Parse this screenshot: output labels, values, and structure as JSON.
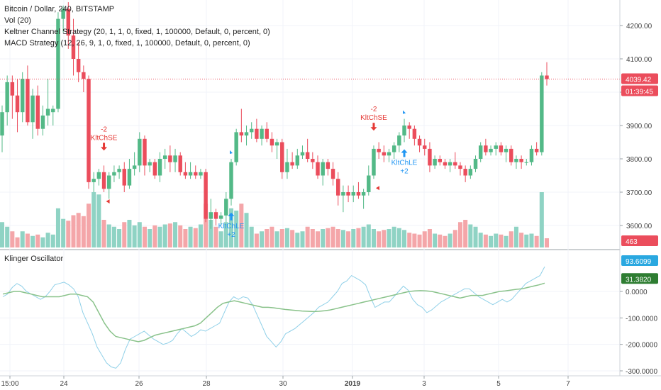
{
  "header": {
    "symbol_line": "Bitcoin / Dollar, 240, BITSTAMP",
    "indicators": [
      "Vol (20)",
      "Keltner Channel Strategy (20, 1, 1, 0, fixed, 1, 100000, Default, 0, percent, 0)",
      "MACD Strategy (12, 26, 9, 1, 0, fixed, 1, 100000, Default, 0, percent, 0)"
    ]
  },
  "oscillator": {
    "title": "Klinger Oscillator"
  },
  "badges": {
    "last_price": "4039.42",
    "countdown": "01:39:45",
    "volume": "463",
    "osc_value_1": "93.6099",
    "osc_value_2": "31.3820"
  },
  "colors": {
    "up": "#53b987",
    "down": "#eb4d5c",
    "vol_up": "#8fd3c4",
    "vol_down": "#f4a6a9",
    "signal_long": "#2196f3",
    "signal_short": "#e53935",
    "klinger_line": "#8fd0e8",
    "klinger_signal": "#89c28a"
  },
  "chart_data": [
    {
      "type": "candlestick",
      "title": "Bitcoin / Dollar, 240, BITSTAMP",
      "ylim": [
        3540,
        4280
      ],
      "y_ticks": [
        "4200.00",
        "4100.00",
        "4000.00",
        "3900.00",
        "3800.00",
        "3700.00",
        "3600.00"
      ],
      "x_ticks": [
        "15:00",
        "24",
        "26",
        "28",
        "30",
        "2019",
        "3",
        "5",
        "7"
      ],
      "candles": [
        [
          3870,
          3960,
          3820,
          3940
        ],
        [
          3940,
          4050,
          3900,
          4030
        ],
        [
          4030,
          4050,
          3920,
          3990
        ],
        [
          3990,
          4040,
          3880,
          3940
        ],
        [
          3940,
          4060,
          3910,
          4040
        ],
        [
          4040,
          4080,
          3900,
          3910
        ],
        [
          3910,
          4010,
          3860,
          3990
        ],
        [
          3990,
          4020,
          3870,
          3890
        ],
        [
          3890,
          3960,
          3870,
          3930
        ],
        [
          3930,
          4040,
          3900,
          3950
        ],
        [
          3940,
          3960,
          3900,
          3950
        ],
        [
          3950,
          4240,
          3940,
          4220
        ],
        [
          4220,
          4260,
          4180,
          4250
        ],
        [
          4250,
          4270,
          4130,
          4170
        ],
        [
          4170,
          4220,
          4050,
          4100
        ],
        [
          4100,
          4150,
          4030,
          4060
        ],
        [
          4060,
          4080,
          4000,
          4040
        ],
        [
          4040,
          4050,
          3710,
          3730
        ],
        [
          3730,
          3760,
          3700,
          3740
        ],
        [
          3740,
          3770,
          3720,
          3760
        ],
        [
          3760,
          3780,
          3700,
          3710
        ],
        [
          3710,
          3760,
          3680,
          3750
        ],
        [
          3750,
          3780,
          3730,
          3760
        ],
        [
          3760,
          3780,
          3740,
          3770
        ],
        [
          3770,
          3790,
          3700,
          3720
        ],
        [
          3720,
          3800,
          3710,
          3770
        ],
        [
          3770,
          3820,
          3750,
          3780
        ],
        [
          3780,
          3880,
          3760,
          3860
        ],
        [
          3860,
          3870,
          3750,
          3780
        ],
        [
          3780,
          3800,
          3760,
          3790
        ],
        [
          3790,
          3800,
          3740,
          3750
        ],
        [
          3750,
          3820,
          3730,
          3800
        ],
        [
          3800,
          3830,
          3770,
          3810
        ],
        [
          3810,
          3840,
          3760,
          3790
        ],
        [
          3790,
          3830,
          3760,
          3810
        ],
        [
          3810,
          3820,
          3750,
          3760
        ],
        [
          3760,
          3790,
          3740,
          3750
        ],
        [
          3750,
          3790,
          3740,
          3760
        ],
        [
          3760,
          3780,
          3740,
          3750
        ],
        [
          3750,
          3770,
          3740,
          3760
        ],
        [
          3760,
          3770,
          3610,
          3620
        ],
        [
          3620,
          3680,
          3590,
          3640
        ],
        [
          3640,
          3650,
          3600,
          3620
        ],
        [
          3620,
          3640,
          3600,
          3630
        ],
        [
          3630,
          3700,
          3610,
          3680
        ],
        [
          3680,
          3800,
          3660,
          3790
        ],
        [
          3790,
          3890,
          3780,
          3880
        ],
        [
          3880,
          3950,
          3850,
          3870
        ],
        [
          3870,
          3900,
          3840,
          3880
        ],
        [
          3880,
          3910,
          3860,
          3890
        ],
        [
          3890,
          3920,
          3850,
          3860
        ],
        [
          3860,
          3900,
          3840,
          3890
        ],
        [
          3890,
          3910,
          3850,
          3860
        ],
        [
          3860,
          3880,
          3820,
          3840
        ],
        [
          3840,
          3860,
          3800,
          3850
        ],
        [
          3850,
          3860,
          3740,
          3760
        ],
        [
          3760,
          3830,
          3740,
          3790
        ],
        [
          3790,
          3820,
          3770,
          3780
        ],
        [
          3780,
          3830,
          3770,
          3810
        ],
        [
          3810,
          3840,
          3800,
          3820
        ],
        [
          3820,
          3860,
          3790,
          3800
        ],
        [
          3800,
          3820,
          3770,
          3790
        ],
        [
          3790,
          3810,
          3740,
          3750
        ],
        [
          3750,
          3800,
          3720,
          3790
        ],
        [
          3790,
          3800,
          3750,
          3770
        ],
        [
          3770,
          3790,
          3720,
          3740
        ],
        [
          3740,
          3760,
          3660,
          3690
        ],
        [
          3690,
          3720,
          3640,
          3700
        ],
        [
          3700,
          3720,
          3670,
          3690
        ],
        [
          3690,
          3720,
          3670,
          3700
        ],
        [
          3700,
          3730,
          3680,
          3690
        ],
        [
          3690,
          3710,
          3650,
          3700
        ],
        [
          3700,
          3780,
          3690,
          3750
        ],
        [
          3750,
          3840,
          3740,
          3830
        ],
        [
          3830,
          3850,
          3800,
          3820
        ],
        [
          3820,
          3840,
          3790,
          3810
        ],
        [
          3810,
          3830,
          3790,
          3820
        ],
        [
          3820,
          3850,
          3800,
          3840
        ],
        [
          3840,
          3880,
          3820,
          3870
        ],
        [
          3870,
          3920,
          3850,
          3900
        ],
        [
          3900,
          3910,
          3860,
          3890
        ],
        [
          3890,
          3900,
          3840,
          3860
        ],
        [
          3860,
          3870,
          3820,
          3840
        ],
        [
          3840,
          3860,
          3810,
          3830
        ],
        [
          3830,
          3850,
          3760,
          3780
        ],
        [
          3780,
          3810,
          3770,
          3800
        ],
        [
          3800,
          3810,
          3780,
          3790
        ],
        [
          3790,
          3800,
          3770,
          3780
        ],
        [
          3780,
          3800,
          3760,
          3790
        ],
        [
          3790,
          3820,
          3770,
          3780
        ],
        [
          3780,
          3790,
          3750,
          3770
        ],
        [
          3770,
          3780,
          3730,
          3750
        ],
        [
          3750,
          3780,
          3740,
          3770
        ],
        [
          3770,
          3810,
          3760,
          3800
        ],
        [
          3800,
          3850,
          3790,
          3840
        ],
        [
          3840,
          3860,
          3810,
          3820
        ],
        [
          3820,
          3840,
          3810,
          3830
        ],
        [
          3830,
          3850,
          3810,
          3840
        ],
        [
          3840,
          3850,
          3810,
          3820
        ],
        [
          3820,
          3840,
          3790,
          3830
        ],
        [
          3830,
          3840,
          3780,
          3790
        ],
        [
          3790,
          3810,
          3770,
          3800
        ],
        [
          3800,
          3810,
          3770,
          3790
        ],
        [
          3790,
          3800,
          3780,
          3790
        ],
        [
          3790,
          3840,
          3780,
          3830
        ],
        [
          3830,
          3850,
          3810,
          3820
        ],
        [
          3820,
          4060,
          3810,
          4050
        ],
        [
          4050,
          4090,
          4020,
          4039.42
        ]
      ],
      "volume_ylim": [
        0,
        200
      ],
      "volume": [
        55,
        45,
        35,
        22,
        35,
        30,
        25,
        28,
        22,
        32,
        28,
        85,
        62,
        58,
        70,
        75,
        68,
        95,
        120,
        115,
        60,
        50,
        45,
        40,
        55,
        60,
        48,
        55,
        45,
        40,
        48,
        45,
        50,
        52,
        55,
        48,
        40,
        45,
        42,
        50,
        95,
        60,
        45,
        35,
        55,
        85,
        80,
        95,
        75,
        45,
        30,
        35,
        40,
        45,
        35,
        40,
        42,
        38,
        32,
        35,
        45,
        40,
        35,
        40,
        42,
        45,
        40,
        38,
        35,
        40,
        42,
        45,
        50,
        40,
        35,
        38,
        40,
        45,
        42,
        38,
        32,
        30,
        28,
        35,
        40,
        30,
        28,
        25,
        30,
        38,
        55,
        60,
        50,
        45,
        32,
        28,
        25,
        30,
        28,
        25,
        35,
        45,
        32,
        28,
        30,
        25,
        120,
        20
      ],
      "signals": [
        {
          "text": "-2",
          "label": "KltChSE",
          "dir": "short"
        },
        {
          "text": "+2",
          "label": "KltChLE",
          "dir": "long"
        },
        {
          "text": "-2",
          "label": "KltChSE",
          "dir": "short"
        },
        {
          "text": "+2",
          "label": "KltChLE",
          "dir": "long"
        }
      ]
    },
    {
      "type": "line",
      "title": "Klinger Oscillator",
      "ylim": [
        -310,
        120
      ],
      "y_ticks": [
        "0.0000",
        "-100.0000",
        "-200.0000",
        "-300.0000"
      ],
      "series": [
        {
          "values": [
            -20,
            -10,
            15,
            30,
            20,
            0,
            -10,
            -20,
            -30,
            -20,
            0,
            25,
            30,
            35,
            25,
            10,
            -20,
            -80,
            -120,
            -160,
            -210,
            -240,
            -270,
            -285,
            -290,
            -270,
            -220,
            -180,
            -170,
            -160,
            -150,
            -165,
            -180,
            -190,
            -200,
            -195,
            -185,
            -160,
            -140,
            -155,
            -170,
            -160,
            -145,
            -150,
            -140,
            -130,
            -120,
            -80,
            -40,
            -20,
            -30,
            -20,
            -25,
            -50,
            -90,
            -130,
            -170,
            -190,
            -210,
            -190,
            -160,
            -150,
            -140,
            -125,
            -110,
            -95,
            -80,
            -60,
            -50,
            -40,
            -20,
            0,
            30,
            40,
            60,
            50,
            40,
            25,
            -20,
            -60,
            -50,
            -40,
            -40,
            -20,
            0,
            20,
            5,
            -30,
            -50,
            -60,
            -80,
            -70,
            -55,
            -40,
            -30,
            -20,
            -10,
            0,
            10,
            10,
            -5,
            -20,
            -30,
            -40,
            -50,
            -40,
            -30,
            -40,
            -30,
            -10,
            10,
            30,
            40,
            50,
            60,
            93.61
          ]
        },
        {
          "values": [
            -10,
            -5,
            0,
            0,
            -5,
            -10,
            -15,
            -20,
            -20,
            -20,
            -20,
            -15,
            -10,
            -10,
            -15,
            -20,
            -40,
            -80,
            -120,
            -150,
            -170,
            -175,
            -180,
            -185,
            -190,
            -185,
            -175,
            -165,
            -160,
            -155,
            -150,
            -145,
            -140,
            -135,
            -130,
            -120,
            -100,
            -80,
            -60,
            -45,
            -40,
            -35,
            -40,
            -45,
            -50,
            -55,
            -60,
            -60,
            -62,
            -65,
            -68,
            -70,
            -72,
            -74,
            -75,
            -76,
            -75,
            -73,
            -70,
            -65,
            -60,
            -55,
            -50,
            -45,
            -40,
            -35,
            -30,
            -25,
            -20,
            -15,
            -10,
            -5,
            0,
            2,
            3,
            2,
            0,
            -5,
            -10,
            -15,
            -20,
            -25,
            -20,
            -15,
            -15,
            -15,
            -10,
            -5,
            0,
            2,
            5,
            8,
            10,
            15,
            20,
            25,
            31.38
          ]
        }
      ]
    }
  ]
}
